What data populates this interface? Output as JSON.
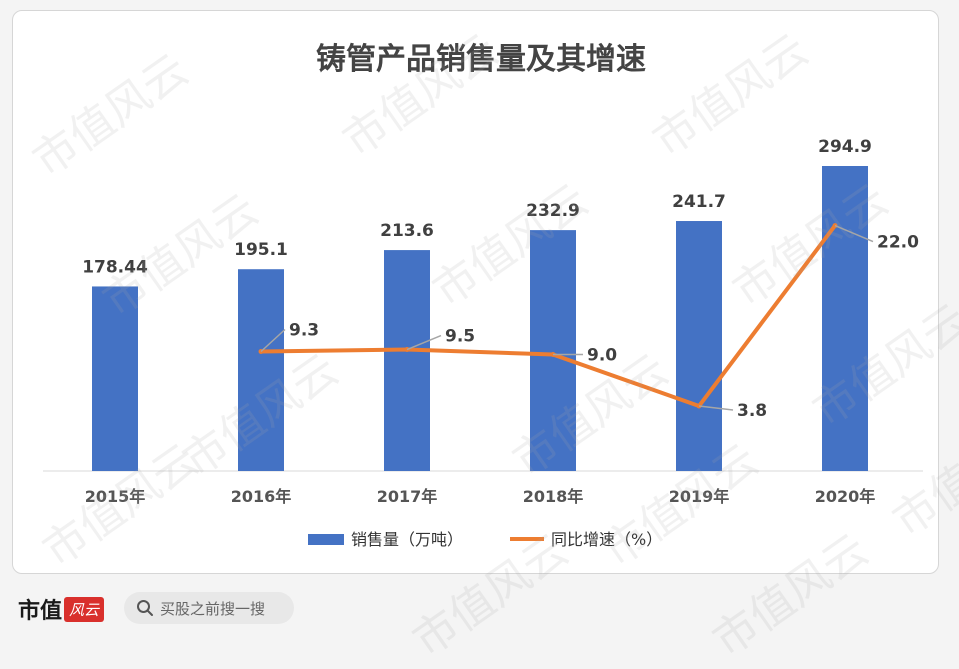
{
  "chart_data": {
    "type": "bar+line",
    "title": "铸管产品销售量及其增速",
    "categories": [
      "2015年",
      "2016年",
      "2017年",
      "2018年",
      "2019年",
      "2020年"
    ],
    "series": [
      {
        "name": "销售量（万吨）",
        "type": "bar",
        "values": [
          178.44,
          195.1,
          213.6,
          232.9,
          241.7,
          294.9
        ],
        "labels": [
          "178.44",
          "195.1",
          "213.6",
          "232.9",
          "241.7",
          "294.9"
        ],
        "color": "#4472c4"
      },
      {
        "name": "同比增速（%）",
        "type": "line",
        "values": [
          null,
          9.3,
          9.5,
          9.0,
          3.8,
          22.0
        ],
        "labels": [
          "",
          "9.3",
          "9.5",
          "9.0",
          "3.8",
          "22.0"
        ],
        "color": "#ed7d31"
      }
    ],
    "legend_position": "bottom",
    "grid": false
  },
  "watermark_text": "市值风云",
  "footer": {
    "brand_name": "市值",
    "brand_badge": "风云",
    "search_placeholder": "买股之前搜一搜"
  }
}
